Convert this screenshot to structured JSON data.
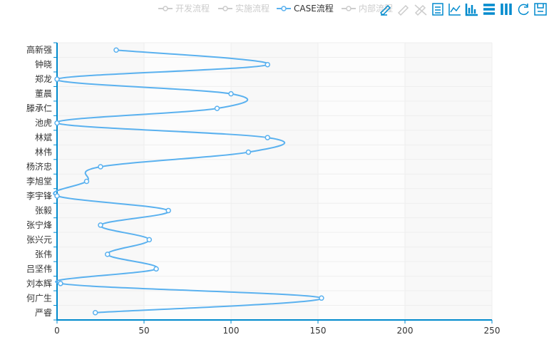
{
  "legend": {
    "items": [
      {
        "label": "开发流程",
        "active": false
      },
      {
        "label": "实施流程",
        "active": false
      },
      {
        "label": "CASE流程",
        "active": true
      },
      {
        "label": "内部流程",
        "active": false
      }
    ]
  },
  "toolbox": {
    "icons": [
      "mark-icon",
      "mark-undo-icon",
      "mark-clear-icon",
      "data-view-icon",
      "line-chart-icon",
      "bar-chart-icon",
      "stack-icon",
      "tiled-icon",
      "restore-icon",
      "save-image-icon"
    ]
  },
  "colors": {
    "series": "#5AB1EF",
    "axis": "#008ACD",
    "inactive_legend": "#CCCCCC",
    "split_area": [
      "#F8F8F8",
      "#FCFCFC"
    ],
    "grid_line": "#EEEEEE"
  },
  "chart_data": {
    "type": "line",
    "orientation": "horizontal",
    "categories": [
      "高新强",
      "钟晓",
      "郑龙",
      "董晨",
      "滕承仁",
      "池虎",
      "林斌",
      "林伟",
      "杨济忠",
      "李旭堂",
      "李宇锋",
      "张毅",
      "张宁烽",
      "张兴元",
      "张伟",
      "吕坚伟",
      "刘本辉",
      "何广生",
      "严睿"
    ],
    "series": [
      {
        "name": "CASE流程",
        "values": [
          34,
          121,
          0,
          100,
          92,
          0,
          121,
          110,
          25,
          17,
          0,
          64,
          25,
          53,
          29,
          57,
          2,
          152,
          22
        ]
      }
    ],
    "xlim": [
      0,
      250
    ],
    "xticks": [
      0,
      50,
      100,
      150,
      200,
      250
    ],
    "xlabel": "",
    "ylabel": "",
    "grid": true,
    "legend_position": "top-right"
  }
}
